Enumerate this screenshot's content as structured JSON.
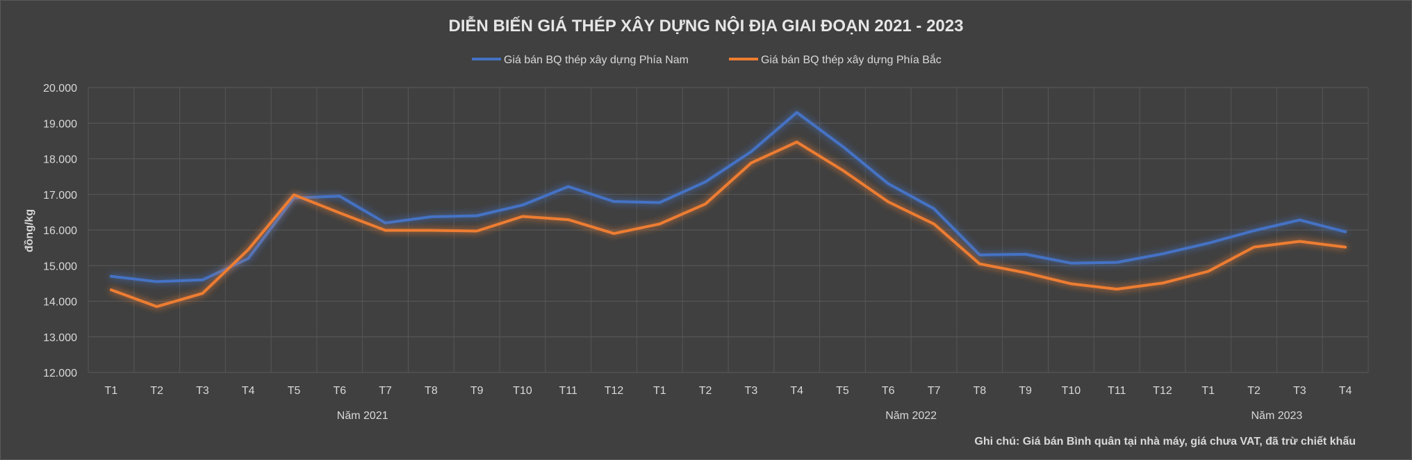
{
  "chart_data": {
    "type": "line",
    "title": "DIỄN BIẾN GIÁ THÉP XÂY DỰNG NỘI ĐỊA GIAI ĐOẠN 2021 - 2023",
    "ylabel": "đồng/kg",
    "ylim": [
      12000,
      20000
    ],
    "yticks": [
      12000,
      13000,
      14000,
      15000,
      16000,
      17000,
      18000,
      19000,
      20000
    ],
    "ytick_labels": [
      "12.000",
      "13.000",
      "14.000",
      "15.000",
      "16.000",
      "17.000",
      "18.000",
      "19.000",
      "20.000"
    ],
    "categories": [
      "T1",
      "T2",
      "T3",
      "T4",
      "T5",
      "T6",
      "T7",
      "T8",
      "T9",
      "T10",
      "T11",
      "T12",
      "T1",
      "T2",
      "T3",
      "T4",
      "T5",
      "T6",
      "T7",
      "T8",
      "T9",
      "T10",
      "T11",
      "T12",
      "T1",
      "T2",
      "T3",
      "T4"
    ],
    "groups": [
      {
        "label": "Năm 2021",
        "start": 0,
        "end": 11
      },
      {
        "label": "Năm 2022",
        "start": 12,
        "end": 23
      },
      {
        "label": "Năm 2023",
        "start": 24,
        "end": 27
      }
    ],
    "series": [
      {
        "name": "Giá bán BQ thép xây dựng Phía Nam",
        "color": "#4472c4",
        "values": [
          14700,
          14550,
          14600,
          15200,
          16900,
          16950,
          16200,
          16370,
          16400,
          16700,
          17220,
          16800,
          16770,
          17350,
          18200,
          19300,
          18350,
          17300,
          16600,
          15300,
          15320,
          15070,
          15090,
          15330,
          15630,
          15980,
          16280,
          15950
        ]
      },
      {
        "name": "Giá bán BQ thép xây dựng Phía Bắc",
        "color": "#ed7d31",
        "values": [
          14320,
          13850,
          14220,
          15450,
          16990,
          16480,
          15990,
          15990,
          15970,
          16380,
          16290,
          15900,
          16170,
          16730,
          17880,
          18470,
          17680,
          16790,
          16170,
          15050,
          14800,
          14490,
          14340,
          14510,
          14840,
          15520,
          15680,
          15520
        ]
      }
    ],
    "grid": true,
    "legend": "top"
  },
  "footnote": "Ghi chú: Giá bán Bình quân tại nhà máy, giá chưa VAT, đã trừ chiết khấu",
  "colors": {
    "background": "#404040",
    "grid": "#595959",
    "text": "#d9d9d9"
  }
}
